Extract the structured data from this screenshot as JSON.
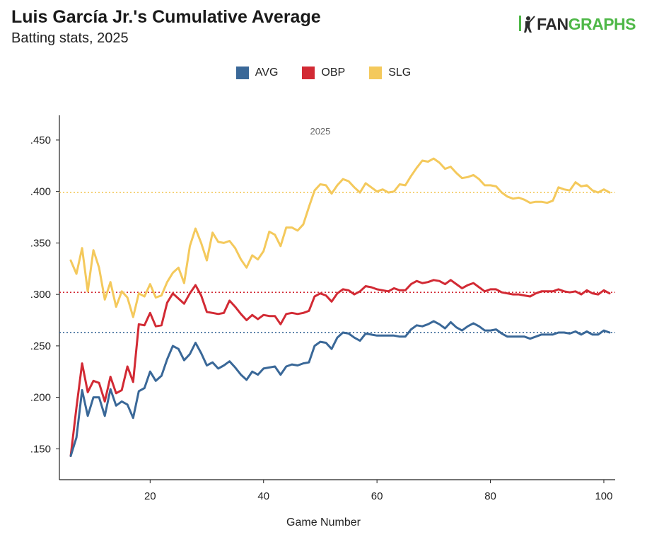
{
  "header": {
    "title": "Luis García Jr.'s Cumulative Average",
    "subtitle": "Batting stats, 2025"
  },
  "logo": {
    "part1": "FAN",
    "part2": "GRAPHS"
  },
  "colors": {
    "AVG": "#3a6898",
    "OBP": "#d22a34",
    "SLG": "#f4c95c",
    "axis": "#222222",
    "annotation": "#666666"
  },
  "chart_data": {
    "type": "line",
    "title": "Luis García Jr.'s Cumulative Average",
    "subtitle": "Batting stats, 2025",
    "xlabel": "Game Number",
    "ylabel": "",
    "xlim": [
      4,
      102
    ],
    "ylim": [
      0.12,
      0.474
    ],
    "x_ticks": [
      20,
      40,
      60,
      80,
      100
    ],
    "x_tick_labels": [
      "20",
      "40",
      "60",
      "80",
      "100"
    ],
    "y_ticks": [
      0.15,
      0.2,
      0.25,
      0.3,
      0.35,
      0.4,
      0.45
    ],
    "y_tick_labels": [
      ".150",
      ".200",
      ".250",
      ".300",
      ".350",
      ".400",
      ".450"
    ],
    "grid": false,
    "legend_position": "top-center",
    "annotation": "2025",
    "x": [
      6,
      7,
      8,
      9,
      10,
      11,
      12,
      13,
      14,
      15,
      16,
      17,
      18,
      19,
      20,
      21,
      22,
      23,
      24,
      25,
      26,
      27,
      28,
      29,
      30,
      31,
      32,
      33,
      34,
      35,
      36,
      37,
      38,
      39,
      40,
      41,
      42,
      43,
      44,
      45,
      46,
      47,
      48,
      49,
      50,
      51,
      52,
      53,
      54,
      55,
      56,
      57,
      58,
      59,
      60,
      61,
      62,
      63,
      64,
      65,
      66,
      67,
      68,
      69,
      70,
      71,
      72,
      73,
      74,
      75,
      76,
      77,
      78,
      79,
      80,
      81,
      82,
      83,
      84,
      85,
      86,
      87,
      88,
      89,
      90,
      91,
      92,
      93,
      94,
      95,
      96,
      97,
      98,
      99,
      100,
      101
    ],
    "series": [
      {
        "name": "AVG",
        "color": "#3a6898",
        "reference_line": 0.263,
        "values": [
          0.143,
          0.161,
          0.207,
          0.182,
          0.2,
          0.2,
          0.182,
          0.208,
          0.192,
          0.196,
          0.193,
          0.18,
          0.206,
          0.209,
          0.225,
          0.216,
          0.221,
          0.237,
          0.25,
          0.247,
          0.236,
          0.242,
          0.253,
          0.243,
          0.231,
          0.234,
          0.228,
          0.231,
          0.235,
          0.229,
          0.222,
          0.217,
          0.225,
          0.222,
          0.228,
          0.229,
          0.23,
          0.222,
          0.23,
          0.232,
          0.231,
          0.233,
          0.234,
          0.25,
          0.254,
          0.253,
          0.247,
          0.258,
          0.263,
          0.262,
          0.258,
          0.255,
          0.262,
          0.261,
          0.26,
          0.26,
          0.26,
          0.26,
          0.259,
          0.259,
          0.266,
          0.27,
          0.269,
          0.271,
          0.274,
          0.271,
          0.267,
          0.273,
          0.268,
          0.265,
          0.269,
          0.272,
          0.269,
          0.265,
          0.265,
          0.266,
          0.262,
          0.259,
          0.259,
          0.259,
          0.259,
          0.257,
          0.259,
          0.261,
          0.261,
          0.261,
          0.263,
          0.263,
          0.262,
          0.264,
          0.261,
          0.264,
          0.261,
          0.261,
          0.265,
          0.263
        ]
      },
      {
        "name": "OBP",
        "color": "#d22a34",
        "reference_line": 0.302,
        "values": [
          0.143,
          0.19,
          0.233,
          0.205,
          0.216,
          0.214,
          0.196,
          0.22,
          0.204,
          0.207,
          0.23,
          0.215,
          0.271,
          0.27,
          0.282,
          0.269,
          0.27,
          0.292,
          0.301,
          0.296,
          0.291,
          0.301,
          0.309,
          0.299,
          0.283,
          0.282,
          0.281,
          0.282,
          0.294,
          0.288,
          0.281,
          0.275,
          0.28,
          0.276,
          0.28,
          0.279,
          0.279,
          0.271,
          0.281,
          0.282,
          0.281,
          0.282,
          0.284,
          0.298,
          0.301,
          0.299,
          0.293,
          0.301,
          0.305,
          0.304,
          0.3,
          0.303,
          0.308,
          0.307,
          0.305,
          0.304,
          0.303,
          0.306,
          0.304,
          0.304,
          0.31,
          0.313,
          0.311,
          0.312,
          0.314,
          0.313,
          0.31,
          0.314,
          0.31,
          0.306,
          0.309,
          0.311,
          0.307,
          0.303,
          0.305,
          0.305,
          0.302,
          0.301,
          0.3,
          0.3,
          0.299,
          0.298,
          0.301,
          0.303,
          0.303,
          0.303,
          0.305,
          0.303,
          0.302,
          0.303,
          0.3,
          0.304,
          0.301,
          0.3,
          0.304,
          0.301
        ]
      },
      {
        "name": "SLG",
        "color": "#f4c95c",
        "reference_line": 0.399,
        "values": [
          0.333,
          0.32,
          0.345,
          0.303,
          0.343,
          0.326,
          0.295,
          0.312,
          0.288,
          0.303,
          0.297,
          0.278,
          0.301,
          0.298,
          0.31,
          0.297,
          0.299,
          0.312,
          0.321,
          0.326,
          0.311,
          0.347,
          0.364,
          0.35,
          0.333,
          0.36,
          0.351,
          0.35,
          0.352,
          0.345,
          0.334,
          0.326,
          0.338,
          0.334,
          0.342,
          0.361,
          0.358,
          0.347,
          0.365,
          0.365,
          0.362,
          0.368,
          0.385,
          0.401,
          0.407,
          0.406,
          0.398,
          0.406,
          0.412,
          0.41,
          0.404,
          0.399,
          0.408,
          0.404,
          0.4,
          0.402,
          0.399,
          0.4,
          0.407,
          0.406,
          0.415,
          0.423,
          0.43,
          0.429,
          0.432,
          0.428,
          0.422,
          0.424,
          0.418,
          0.413,
          0.414,
          0.416,
          0.412,
          0.406,
          0.406,
          0.405,
          0.399,
          0.395,
          0.393,
          0.394,
          0.392,
          0.389,
          0.39,
          0.39,
          0.389,
          0.391,
          0.404,
          0.402,
          0.401,
          0.409,
          0.405,
          0.406,
          0.401,
          0.399,
          0.402,
          0.399
        ]
      }
    ]
  }
}
